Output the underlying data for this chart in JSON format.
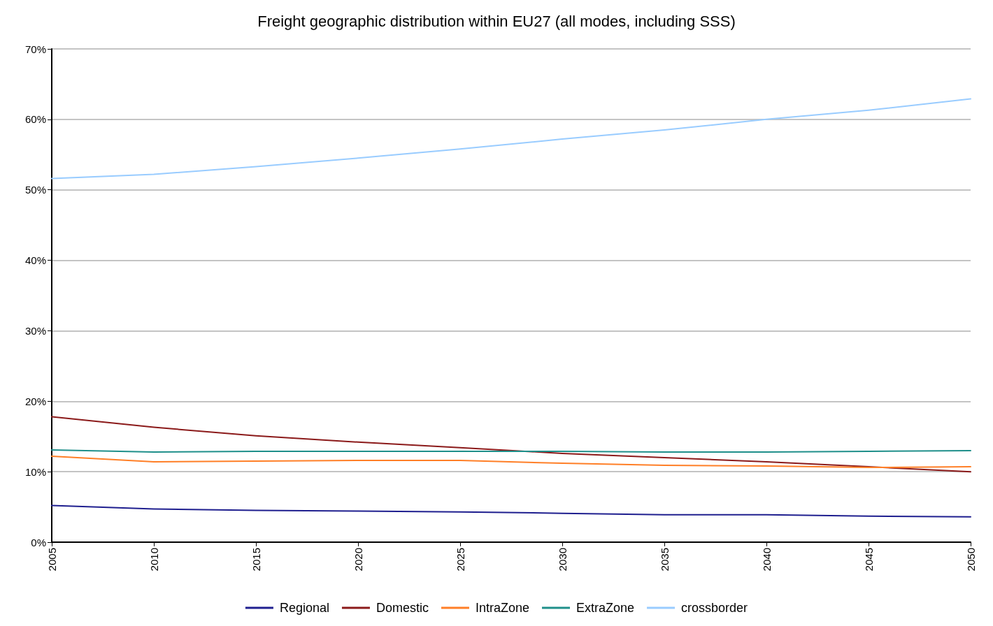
{
  "chart_data": {
    "type": "line",
    "title": "Freight geographic distribution within EU27 (all modes, including SSS)",
    "x": [
      2005,
      2010,
      2015,
      2020,
      2025,
      2030,
      2035,
      2040,
      2045,
      2050
    ],
    "xlim": [
      2005,
      2050
    ],
    "xticks": [
      2005,
      2010,
      2015,
      2020,
      2025,
      2030,
      2035,
      2040,
      2045,
      2050
    ],
    "ylim": [
      0,
      70
    ],
    "yticks": [
      {
        "value": 0,
        "label": "0%"
      },
      {
        "value": 10,
        "label": "10%"
      },
      {
        "value": 20,
        "label": "20%"
      },
      {
        "value": 30,
        "label": "30%"
      },
      {
        "value": 40,
        "label": "40%"
      },
      {
        "value": 50,
        "label": "50%"
      },
      {
        "value": 60,
        "label": "60%"
      },
      {
        "value": 70,
        "label": "70%"
      }
    ],
    "grid": "y",
    "legend": "bottom",
    "marker": "none",
    "line_style": "solid",
    "series": [
      {
        "name": "Regional",
        "color": "#1f1f8f",
        "values": [
          5.2,
          4.7,
          4.5,
          4.4,
          4.3,
          4.1,
          3.9,
          3.9,
          3.7,
          3.6
        ]
      },
      {
        "name": "Domestic",
        "color": "#8b1a1a",
        "values": [
          17.8,
          16.3,
          15.1,
          14.2,
          13.4,
          12.6,
          12.0,
          11.4,
          10.7,
          10.0
        ]
      },
      {
        "name": "IntraZone",
        "color": "#ff7f27",
        "values": [
          12.2,
          11.4,
          11.5,
          11.6,
          11.6,
          11.2,
          10.9,
          10.8,
          10.6,
          10.7
        ]
      },
      {
        "name": "ExtraZone",
        "color": "#1f8f8a",
        "values": [
          13.1,
          12.8,
          12.9,
          12.9,
          12.9,
          12.9,
          12.8,
          12.8,
          12.9,
          13.0
        ]
      },
      {
        "name": "crossborder",
        "color": "#99ccff",
        "values": [
          51.6,
          52.2,
          53.3,
          54.5,
          55.8,
          57.2,
          58.5,
          60.0,
          61.3,
          62.9
        ]
      }
    ]
  }
}
